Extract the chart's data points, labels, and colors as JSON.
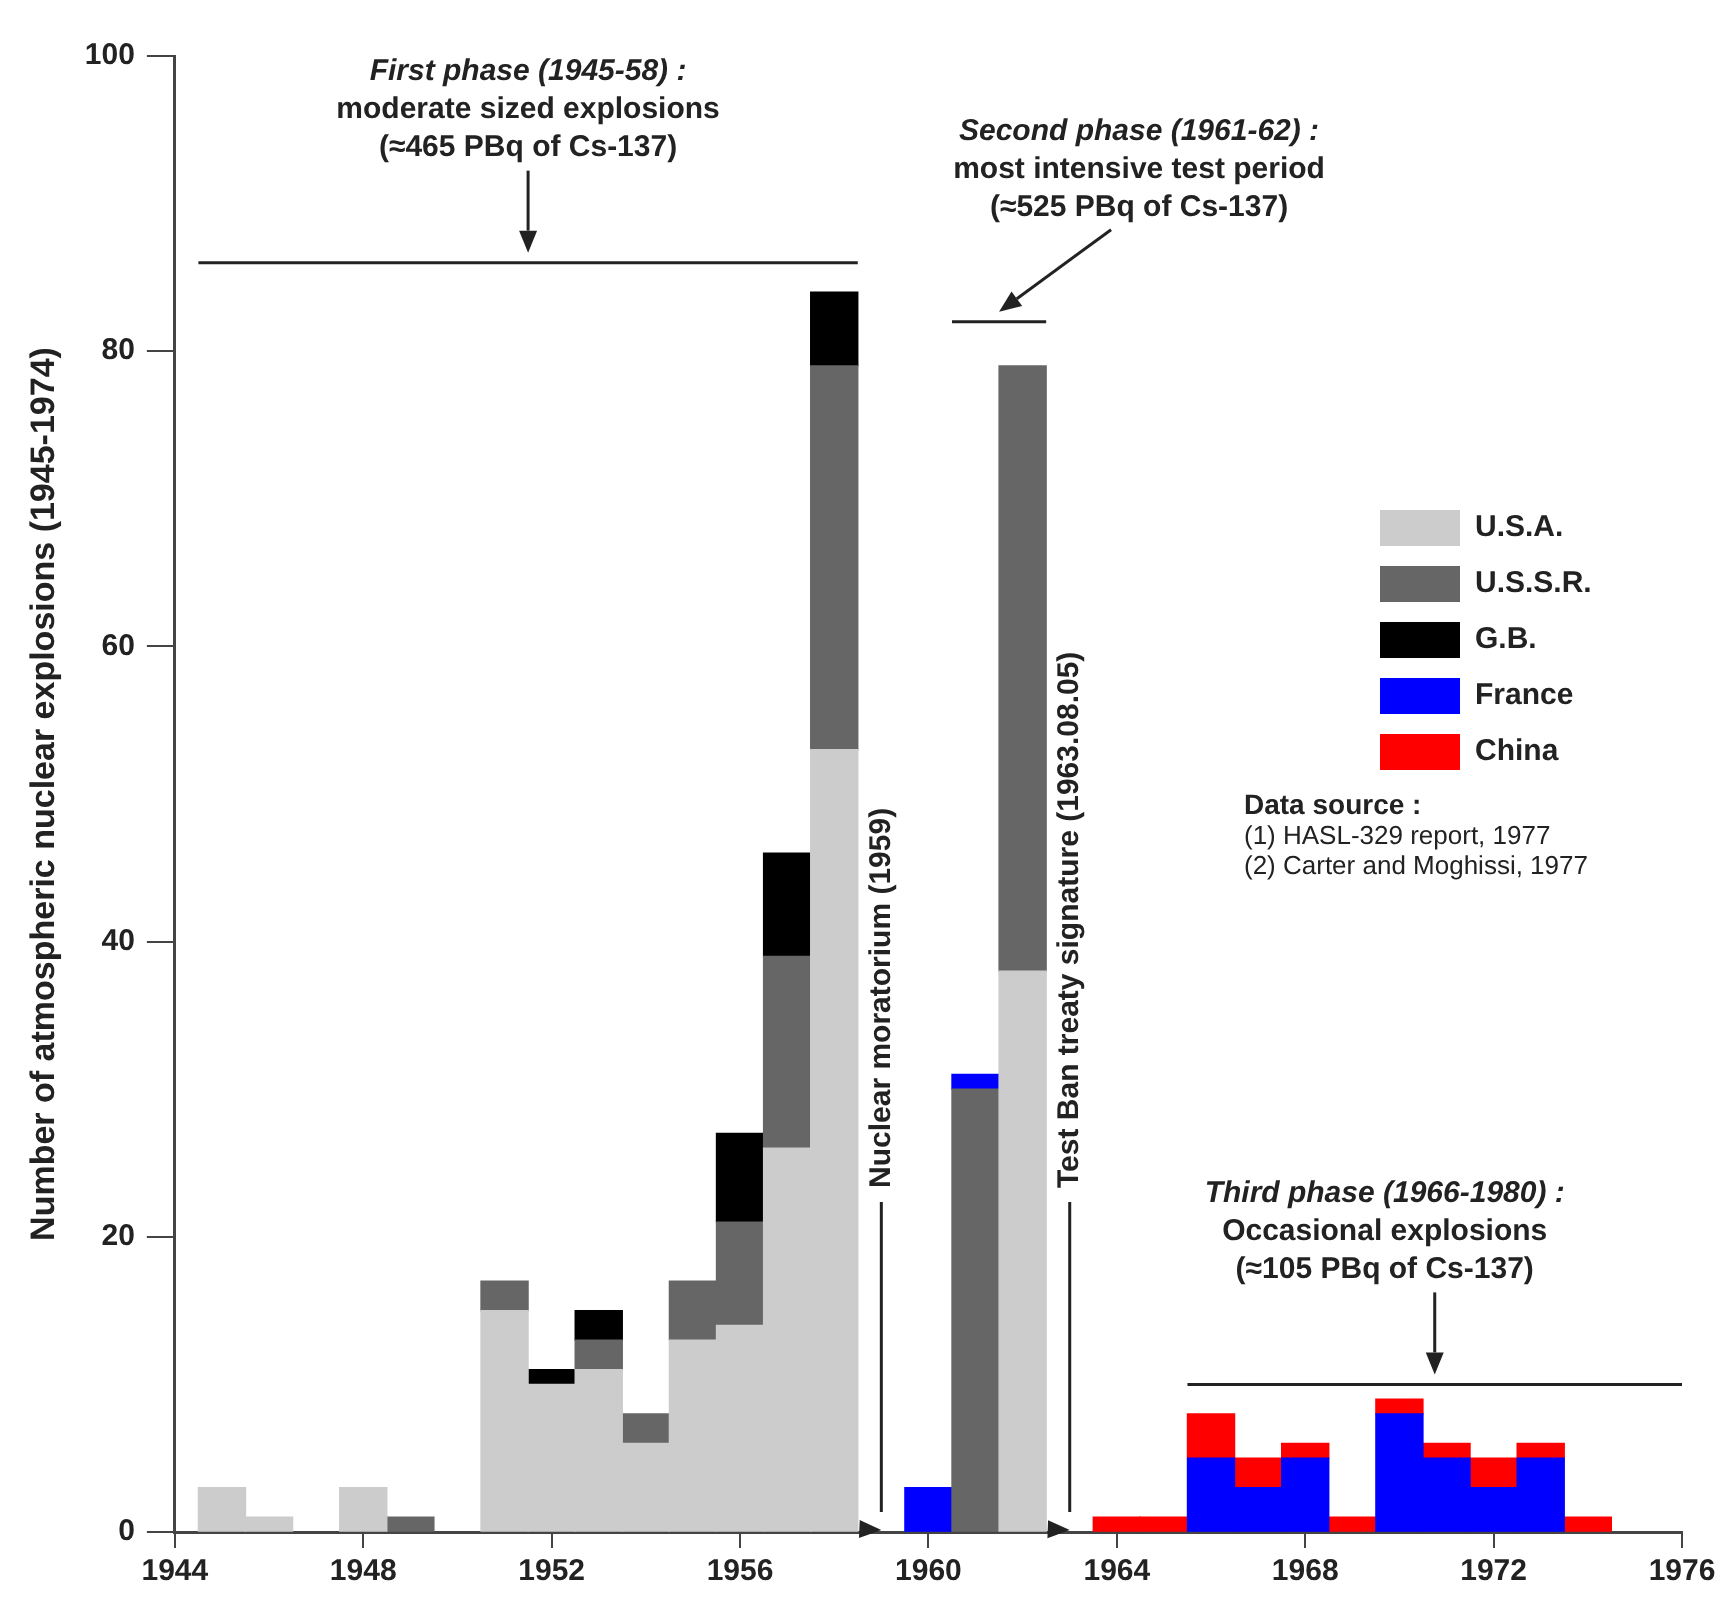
{
  "chart_data": {
    "type": "bar",
    "stacked": true,
    "ylabel": "Number of atmospheric nuclear explosions (1945-1974)",
    "x": [
      1945,
      1946,
      1947,
      1948,
      1949,
      1950,
      1951,
      1952,
      1953,
      1954,
      1955,
      1956,
      1957,
      1958,
      1959,
      1960,
      1961,
      1962,
      1963,
      1964,
      1965,
      1966,
      1967,
      1968,
      1969,
      1970,
      1971,
      1972,
      1973,
      1974
    ],
    "series": [
      {
        "name": "U.S.A.",
        "color": "#cccccc",
        "values": [
          3,
          1,
          null,
          3,
          null,
          null,
          15,
          10,
          11,
          6,
          13,
          14,
          26,
          53,
          null,
          null,
          null,
          38,
          null,
          null,
          null,
          null,
          null,
          null,
          null,
          null,
          null,
          null,
          null,
          null
        ]
      },
      {
        "name": "U.S.S.R.",
        "color": "#666666",
        "values": [
          null,
          null,
          null,
          null,
          1,
          null,
          2,
          null,
          2,
          2,
          4,
          7,
          13,
          26,
          null,
          null,
          30,
          41,
          null,
          null,
          null,
          null,
          null,
          null,
          null,
          null,
          null,
          null,
          null,
          null
        ]
      },
      {
        "name": "G.B.",
        "color": "#000000",
        "values": [
          null,
          null,
          null,
          null,
          null,
          null,
          null,
          1,
          2,
          null,
          null,
          6,
          7,
          5,
          null,
          null,
          null,
          null,
          null,
          null,
          null,
          null,
          null,
          null,
          null,
          null,
          null,
          null,
          null,
          null
        ]
      },
      {
        "name": "France",
        "color": "#0000ff",
        "values": [
          null,
          null,
          null,
          null,
          null,
          null,
          null,
          null,
          null,
          null,
          null,
          null,
          null,
          null,
          null,
          3,
          1,
          null,
          null,
          null,
          null,
          5,
          3,
          5,
          null,
          8,
          5,
          3,
          5,
          null
        ]
      },
      {
        "name": "China",
        "color": "#ff0000",
        "values": [
          null,
          null,
          null,
          null,
          null,
          null,
          null,
          null,
          null,
          null,
          null,
          null,
          null,
          null,
          null,
          null,
          null,
          null,
          null,
          1,
          1,
          3,
          2,
          1,
          1,
          1,
          1,
          2,
          1,
          1
        ]
      },
      {
        "type": "line",
        "color": "#222222",
        "x": [
          1944.5,
          1958.5
        ],
        "values": [
          86,
          86
        ]
      },
      {
        "type": "line",
        "color": "#222222",
        "x": [
          1960.5,
          1962.5
        ],
        "values": [
          82,
          82
        ]
      },
      {
        "type": "line",
        "color": "#222222",
        "x": [
          1965.5,
          1976
        ],
        "values": [
          10,
          10
        ]
      }
    ],
    "xlim": [
      1944,
      1976
    ],
    "xticks": [
      1944,
      1948,
      1952,
      1956,
      1960,
      1964,
      1968,
      1972,
      1976
    ],
    "ylim": [
      0,
      100
    ],
    "yticks": [
      0,
      20,
      40,
      60,
      80,
      100
    ],
    "grid": false,
    "legend": "right",
    "ref_lines": [
      {
        "axis": "x",
        "value": 1959,
        "label": "Nuclear moratorium (1959)"
      },
      {
        "axis": "x",
        "value": 1963,
        "label": "Test Ban treaty signature (1963.08.05)"
      }
    ],
    "annotations": [
      "First phase (1945-58) :\nmoderate sized explosions\n(≈465 PBq of Cs-137)",
      "Second phase (1961-62) :\nmost intensive test period\n(≈525 PBq of Cs-137)",
      "Third phase (1966-1980) :\nOccasional explosions\n(≈105 PBq of Cs-137)",
      "Data source :\n(1) HASL-329 report, 1977\n(2) Carter and Moghissi, 1977"
    ]
  }
}
